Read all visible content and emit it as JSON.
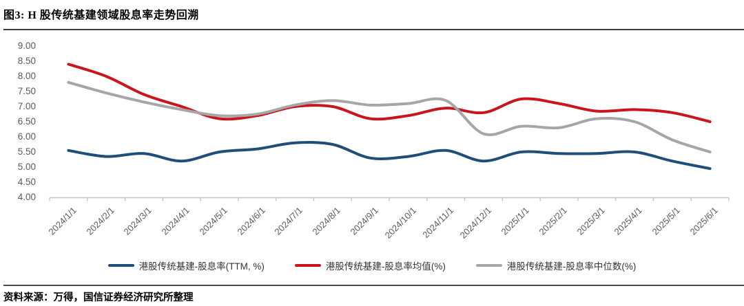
{
  "figure": {
    "title": "图3: H 股传统基建领域股息率走势回溯",
    "source": "资料来源：万得，国信证券经济研究所整理"
  },
  "chart_data": {
    "type": "line",
    "title": "图3: H 股传统基建领域股息率走势回溯",
    "x": [
      "2024/1/1",
      "2024/2/1",
      "2024/3/1",
      "2024/4/1",
      "2024/5/1",
      "2024/6/1",
      "2024/7/1",
      "2024/8/1",
      "2024/9/1",
      "2024/10/1",
      "2024/11/1",
      "2024/12/1",
      "2025/1/1",
      "2025/2/1",
      "2025/3/1",
      "2025/4/1",
      "2025/5/1",
      "2025/6/1"
    ],
    "series": [
      {
        "name": "港股传统基建-股息率(TTM, %)",
        "color": "#1F4E79",
        "values": [
          5.55,
          5.35,
          5.45,
          5.2,
          5.5,
          5.6,
          5.8,
          5.75,
          5.3,
          5.35,
          5.55,
          5.2,
          5.5,
          5.45,
          5.45,
          5.5,
          5.2,
          4.95
        ]
      },
      {
        "name": "港股传统基建-股息率均值(%)",
        "color": "#C9161E",
        "values": [
          8.4,
          8.0,
          7.4,
          7.0,
          6.6,
          6.7,
          7.0,
          7.0,
          6.6,
          6.7,
          6.95,
          6.8,
          7.25,
          7.1,
          6.85,
          6.9,
          6.8,
          6.5
        ]
      },
      {
        "name": "港股传统基建-股息率中位数(%)",
        "color": "#A6A6A6",
        "values": [
          7.8,
          7.45,
          7.15,
          6.9,
          6.7,
          6.75,
          7.05,
          7.2,
          7.05,
          7.1,
          7.2,
          6.1,
          6.35,
          6.3,
          6.6,
          6.5,
          5.9,
          5.5
        ]
      }
    ],
    "ylim": [
      4.0,
      9.0
    ],
    "ytick_step": 0.5,
    "yticks": [
      "9.00",
      "8.50",
      "8.00",
      "7.50",
      "7.00",
      "6.50",
      "6.00",
      "5.50",
      "5.00",
      "4.50",
      "4.00"
    ],
    "grid": false,
    "smooth": true,
    "legend_position": "bottom",
    "axis_color": "#C6C6C6",
    "tick_label_color": "#595959"
  }
}
